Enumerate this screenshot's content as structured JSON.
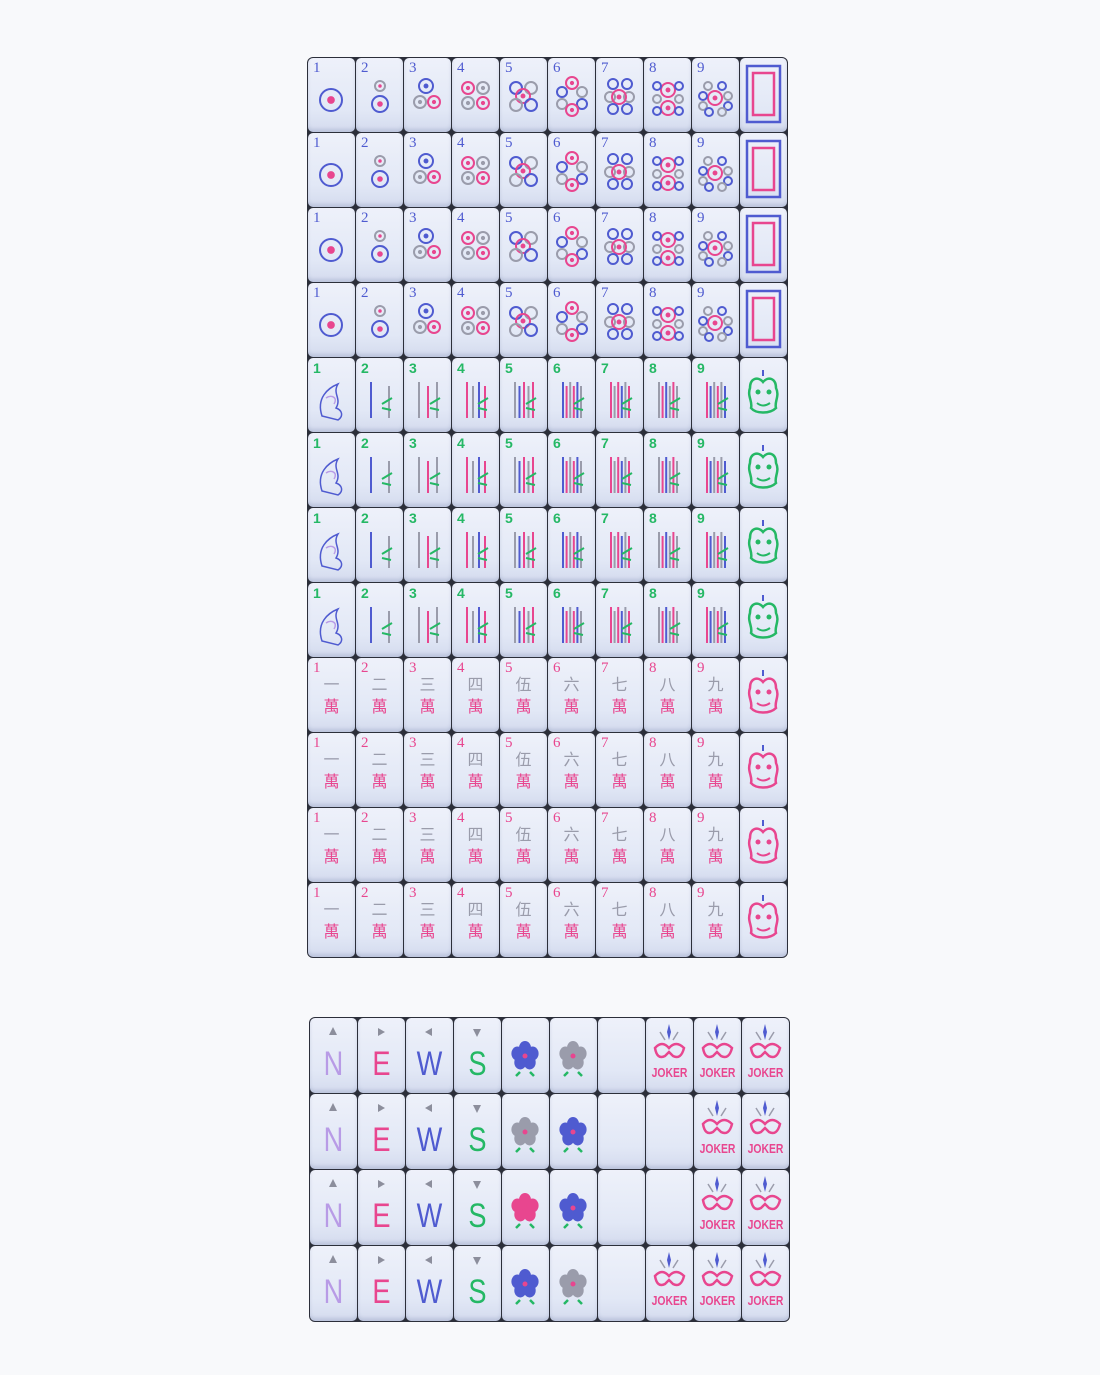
{
  "colors": {
    "blue": "#4f5bd0",
    "pink": "#e8468f",
    "grey": "#9a9cab",
    "green": "#25b865",
    "lavender": "#b89be6",
    "bg": "#f8f9fb",
    "tile": "#e6ebf7"
  },
  "top_set": {
    "rows": [
      {
        "suit": "dots",
        "numbers": [
          "1",
          "2",
          "3",
          "4",
          "5",
          "6",
          "7",
          "8",
          "9"
        ],
        "honor": "white-dragon"
      },
      {
        "suit": "dots",
        "numbers": [
          "1",
          "2",
          "3",
          "4",
          "5",
          "6",
          "7",
          "8",
          "9"
        ],
        "honor": "white-dragon"
      },
      {
        "suit": "dots",
        "numbers": [
          "1",
          "2",
          "3",
          "4",
          "5",
          "6",
          "7",
          "8",
          "9"
        ],
        "honor": "white-dragon"
      },
      {
        "suit": "dots",
        "numbers": [
          "1",
          "2",
          "3",
          "4",
          "5",
          "6",
          "7",
          "8",
          "9"
        ],
        "honor": "white-dragon"
      },
      {
        "suit": "bamboo",
        "numbers": [
          "1",
          "2",
          "3",
          "4",
          "5",
          "6",
          "7",
          "8",
          "9"
        ],
        "honor": "green-dragon"
      },
      {
        "suit": "bamboo",
        "numbers": [
          "1",
          "2",
          "3",
          "4",
          "5",
          "6",
          "7",
          "8",
          "9"
        ],
        "honor": "green-dragon"
      },
      {
        "suit": "bamboo",
        "numbers": [
          "1",
          "2",
          "3",
          "4",
          "5",
          "6",
          "7",
          "8",
          "9"
        ],
        "honor": "green-dragon"
      },
      {
        "suit": "bamboo",
        "numbers": [
          "1",
          "2",
          "3",
          "4",
          "5",
          "6",
          "7",
          "8",
          "9"
        ],
        "honor": "green-dragon"
      },
      {
        "suit": "characters",
        "numbers": [
          "1",
          "2",
          "3",
          "4",
          "5",
          "6",
          "7",
          "8",
          "9"
        ],
        "honor": "red-dragon"
      },
      {
        "suit": "characters",
        "numbers": [
          "1",
          "2",
          "3",
          "4",
          "5",
          "6",
          "7",
          "8",
          "9"
        ],
        "honor": "red-dragon"
      },
      {
        "suit": "characters",
        "numbers": [
          "1",
          "2",
          "3",
          "4",
          "5",
          "6",
          "7",
          "8",
          "9"
        ],
        "honor": "red-dragon"
      },
      {
        "suit": "characters",
        "numbers": [
          "1",
          "2",
          "3",
          "4",
          "5",
          "6",
          "7",
          "8",
          "9"
        ],
        "honor": "red-dragon"
      }
    ],
    "character_glyphs": [
      "一",
      "二",
      "三",
      "四",
      "伍",
      "六",
      "七",
      "八",
      "九"
    ],
    "wan_glyph": "萬"
  },
  "bottom_set": {
    "winds": [
      "N",
      "E",
      "W",
      "S"
    ],
    "joker_label": "JOKER",
    "rows": [
      {
        "flowers": [
          "blue-flower",
          "grey-flower"
        ],
        "jokers": [
          true,
          true,
          true
        ]
      },
      {
        "flowers": [
          "grey-flower",
          "blue-flower"
        ],
        "jokers": [
          false,
          true,
          true
        ]
      },
      {
        "flowers": [
          "pink-lotus",
          "blue-lotus"
        ],
        "jokers": [
          false,
          true,
          true
        ]
      },
      {
        "flowers": [
          "blue-flower",
          "grey-flower"
        ],
        "jokers": [
          true,
          true,
          true
        ]
      }
    ]
  }
}
